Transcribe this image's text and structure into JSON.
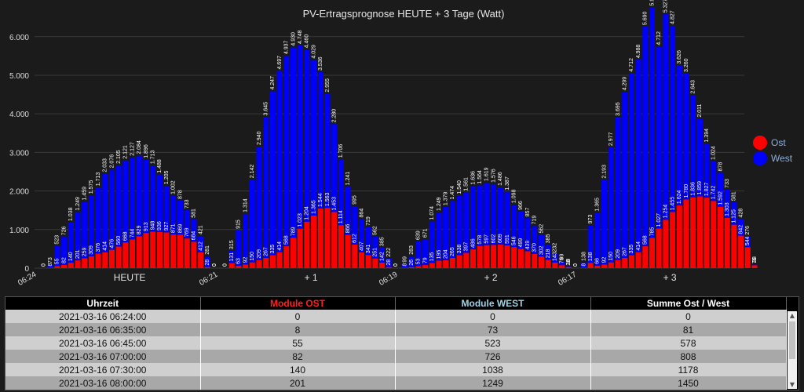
{
  "chart_data": {
    "type": "bar",
    "stacked": true,
    "title": "PV-Ertragsprognose HEUTE + 3 Tage (Watt)",
    "ylim": [
      0,
      6300
    ],
    "yticks": [
      0,
      1000,
      2000,
      3000,
      4000,
      5000,
      6000
    ],
    "ytick_labels": [
      "0",
      "1.000",
      "2.000",
      "3.000",
      "4.000",
      "5.000",
      "6.000"
    ],
    "grid": true,
    "legend_position": "right",
    "series": [
      {
        "name": "Ost",
        "color": "#ff0000"
      },
      {
        "name": "West",
        "color": "#0000ff"
      }
    ],
    "days": [
      {
        "label": "HEUTE",
        "start_time": "06:24",
        "ost": [
          0,
          8,
          55,
          82,
          140,
          201,
          259,
          309,
          376,
          414,
          476,
          560,
          668,
          744,
          829,
          913,
          948,
          936,
          927,
          871,
          869,
          769,
          684,
          412,
          28,
          0
        ],
        "west": [
          0,
          73,
          523,
          726,
          1038,
          1249,
          1459,
          1575,
          1713,
          2033,
          2076,
          2105,
          2121,
          2127,
          2084,
          1896,
          1713,
          1488,
          1205,
          1002,
          878,
          733,
          581,
          421,
          281,
          0
        ]
      },
      {
        "label": "+ 1",
        "start_time": "06:21",
        "ost": [
          0,
          131,
          63,
          92,
          150,
          209,
          267,
          335,
          414,
          568,
          789,
          1023,
          1204,
          1365,
          1544,
          1563,
          1453,
          1114,
          866,
          612,
          407,
          341,
          251,
          142,
          28,
          0
        ],
        "west": [
          0,
          315,
          915,
          1314,
          2142,
          2940,
          3645,
          4247,
          4697,
          4937,
          4930,
          4748,
          4460,
          4029,
          3536,
          2955,
          2280,
          1706,
          1241,
          995,
          864,
          719,
          562,
          385,
          222,
          0
        ]
      },
      {
        "label": "+ 2",
        "start_time": "06:19",
        "ost": [
          8,
          26,
          53,
          79,
          135,
          195,
          204,
          265,
          338,
          397,
          486,
          578,
          597,
          602,
          609,
          591,
          546,
          499,
          439,
          370,
          302,
          218,
          143,
          76,
          28,
          0
        ],
        "west": [
          99,
          283,
          639,
          671,
          1074,
          1249,
          1379,
          1474,
          1540,
          1561,
          1636,
          1564,
          1619,
          1576,
          1486,
          1387,
          1098,
          966,
          857,
          719,
          562,
          385,
          232,
          99,
          18,
          0
        ]
      },
      {
        "label": "+ 3",
        "start_time": "06:17",
        "ost": [
          8,
          138,
          66,
          92,
          150,
          209,
          267,
          335,
          414,
          568,
          785,
          1027,
          1254,
          1455,
          1624,
          1780,
          1836,
          1859,
          1827,
          1742,
          1592,
          1303,
          1125,
          842,
          544,
          76
        ],
        "west": [
          138,
          973,
          1365,
          2193,
          2977,
          3695,
          4299,
          4712,
          4988,
          5690,
          5973,
          4712,
          5327,
          4827,
          3626,
          3260,
          2643,
          2011,
          1394,
          1024,
          878,
          733,
          581,
          428,
          276,
          28
        ]
      }
    ]
  },
  "table": {
    "columns": [
      {
        "label": "Uhrzeit",
        "color": "#ffffff"
      },
      {
        "label": "Module OST",
        "color": "#ff2020"
      },
      {
        "label": "Module WEST",
        "color": "#9fd4e8"
      },
      {
        "label": "Summe Ost / West",
        "color": "#ffffff"
      }
    ],
    "rows": [
      [
        "2021-03-16 06:24:00",
        "0",
        "0",
        "0"
      ],
      [
        "2021-03-16 06:35:00",
        "8",
        "73",
        "81"
      ],
      [
        "2021-03-16 06:45:00",
        "55",
        "523",
        "578"
      ],
      [
        "2021-03-16 07:00:00",
        "82",
        "726",
        "808"
      ],
      [
        "2021-03-16 07:30:00",
        "140",
        "1038",
        "1178"
      ],
      [
        "2021-03-16 08:00:00",
        "201",
        "1249",
        "1450"
      ]
    ]
  },
  "icons": {
    "scroll_up": "triangle-up",
    "scroll_down": "triangle-down"
  }
}
